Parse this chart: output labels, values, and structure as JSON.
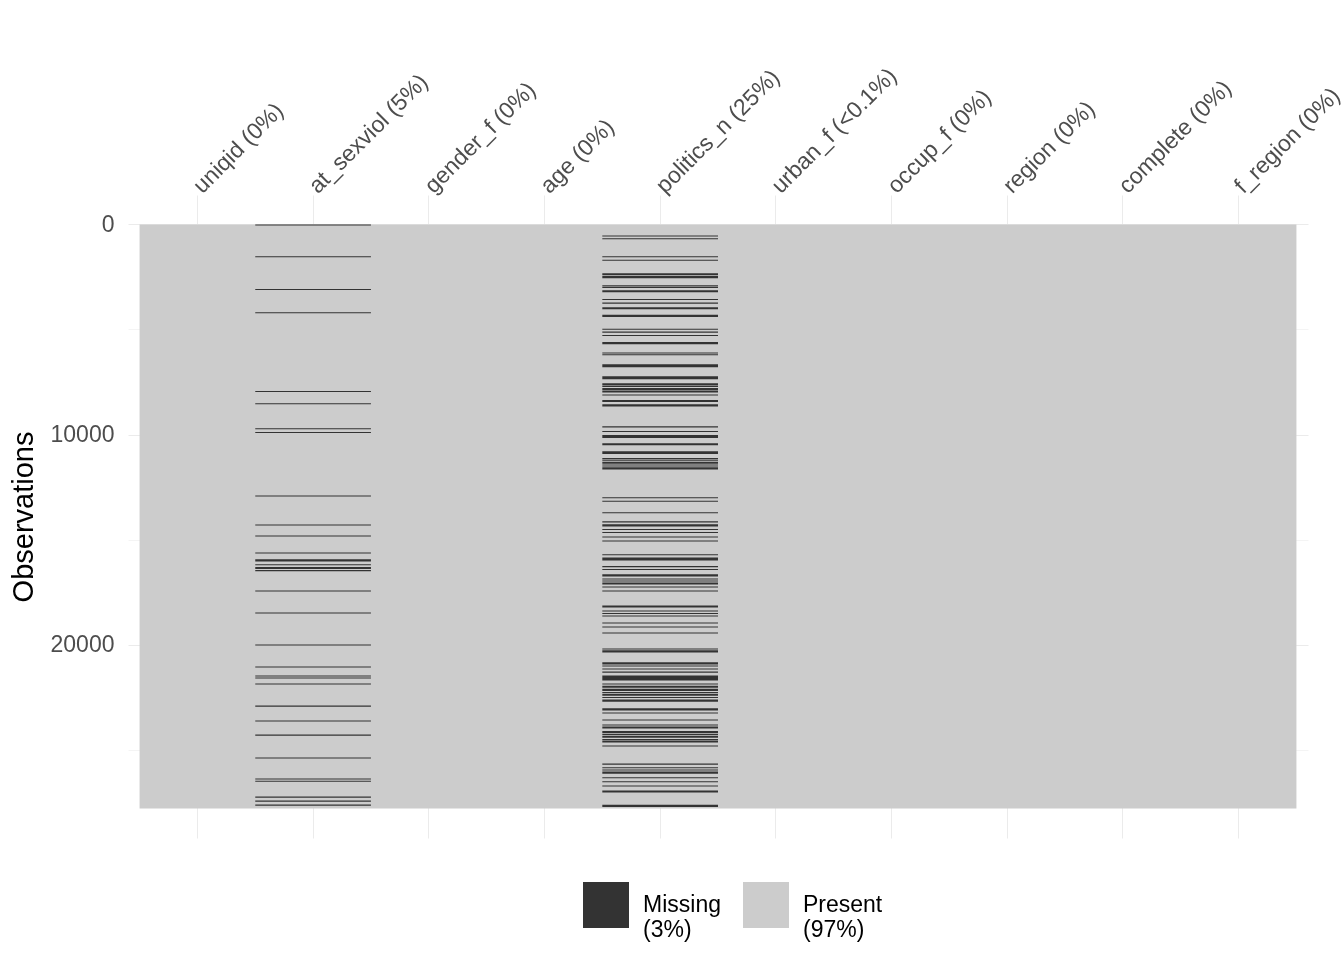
{
  "chart_data": {
    "type": "bar",
    "ylabel": "Observations",
    "categories": [
      "uniqid (0%)",
      "at_sexviol (5%)",
      "gender_f (0%)",
      "age (0%)",
      "politics_n (25%)",
      "urban_f (<0.1%)",
      "occup_f (0%)",
      "region (0%)",
      "complete (0%)",
      "f_region (0%)"
    ],
    "series": [
      {
        "name": "Missing (3%)",
        "color": "#333333",
        "x": [
          "at_sexviol (5%)",
          "at_sexviol (5%)",
          "at_sexviol (5%)",
          "at_sexviol (5%)",
          "at_sexviol (5%)",
          "at_sexviol (5%)",
          "at_sexviol (5%)",
          "at_sexviol (5%)",
          "at_sexviol (5%)",
          "at_sexviol (5%)",
          "at_sexviol (5%)",
          "at_sexviol (5%)",
          "at_sexviol (5%)",
          "at_sexviol (5%)",
          "at_sexviol (5%)",
          "at_sexviol (5%)",
          "at_sexviol (5%)",
          "at_sexviol (5%)",
          "at_sexviol (5%)",
          "at_sexviol (5%)",
          "at_sexviol (5%)",
          "at_sexviol (5%)",
          "at_sexviol (5%)",
          "at_sexviol (5%)",
          "at_sexviol (5%)",
          "at_sexviol (5%)",
          "at_sexviol (5%)",
          "at_sexviol (5%)",
          "at_sexviol (5%)",
          "at_sexviol (5%)",
          "at_sexviol (5%)",
          "at_sexviol (5%)",
          "politics_n (25%)",
          "politics_n (25%)",
          "politics_n (25%)",
          "politics_n (25%)",
          "politics_n (25%)",
          "politics_n (25%)",
          "politics_n (25%)",
          "politics_n (25%)",
          "politics_n (25%)",
          "politics_n (25%)",
          "politics_n (25%)",
          "politics_n (25%)",
          "politics_n (25%)",
          "politics_n (25%)",
          "politics_n (25%)",
          "politics_n (25%)",
          "politics_n (25%)",
          "politics_n (25%)",
          "politics_n (25%)",
          "politics_n (25%)",
          "politics_n (25%)",
          "politics_n (25%)",
          "politics_n (25%)",
          "politics_n (25%)",
          "politics_n (25%)",
          "politics_n (25%)",
          "politics_n (25%)",
          "politics_n (25%)",
          "politics_n (25%)",
          "politics_n (25%)",
          "politics_n (25%)",
          "politics_n (25%)",
          "politics_n (25%)",
          "politics_n (25%)",
          "politics_n (25%)",
          "politics_n (25%)",
          "politics_n (25%)",
          "politics_n (25%)",
          "politics_n (25%)",
          "politics_n (25%)",
          "politics_n (25%)",
          "politics_n (25%)",
          "politics_n (25%)",
          "politics_n (25%)",
          "politics_n (25%)",
          "politics_n (25%)",
          "politics_n (25%)",
          "politics_n (25%)",
          "politics_n (25%)",
          "politics_n (25%)",
          "politics_n (25%)",
          "politics_n (25%)",
          "politics_n (25%)",
          "politics_n (25%)",
          "politics_n (25%)",
          "politics_n (25%)",
          "politics_n (25%)",
          "politics_n (25%)",
          "politics_n (25%)",
          "politics_n (25%)",
          "politics_n (25%)",
          "politics_n (25%)",
          "politics_n (25%)",
          "politics_n (25%)",
          "politics_n (25%)",
          "politics_n (25%)",
          "politics_n (25%)",
          "politics_n (25%)",
          "politics_n (25%)",
          "politics_n (25%)",
          "politics_n (25%)",
          "politics_n (25%)",
          "politics_n (25%)",
          "politics_n (25%)",
          "politics_n (25%)",
          "politics_n (25%)",
          "politics_n (25%)",
          "politics_n (25%)",
          "politics_n (25%)",
          "politics_n (25%)",
          "politics_n (25%)",
          "politics_n (25%)",
          "politics_n (25%)",
          "politics_n (25%)",
          "politics_n (25%)",
          "politics_n (25%)",
          "politics_n (25%)",
          "politics_n (25%)",
          "politics_n (25%)",
          "politics_n (25%)",
          "politics_n (25%)",
          "politics_n (25%)",
          "politics_n (25%)",
          "politics_n (25%)",
          "politics_n (25%)",
          "politics_n (25%)",
          "politics_n (25%)",
          "politics_n (25%)",
          "politics_n (25%)"
        ],
        "base": [
          0,
          1510,
          3070,
          4180,
          7930,
          8510,
          9700,
          9880,
          12900,
          14280,
          14800,
          15610,
          15940,
          16170,
          16300,
          16450,
          17420,
          18470,
          19990,
          21040,
          21470,
          21560,
          21850,
          22900,
          23610,
          24280,
          25370,
          26370,
          26470,
          27230,
          27420,
          27610,
          530,
          660,
          1510,
          1680,
          2320,
          2460,
          2900,
          2980,
          3130,
          3550,
          3720,
          3940,
          4300,
          4960,
          5100,
          5260,
          5600,
          6090,
          6180,
          6660,
          7230,
          7560,
          7690,
          7780,
          7900,
          8090,
          8350,
          8560,
          9610,
          9830,
          10020,
          10410,
          10790,
          11120,
          11200,
          11300,
          11370,
          11470,
          11560,
          12980,
          13150,
          13700,
          14130,
          14270,
          14490,
          14640,
          14850,
          15040,
          15700,
          15850,
          16260,
          16400,
          16650,
          16850,
          16940,
          17040,
          17230,
          17420,
          18130,
          18370,
          18490,
          18610,
          18940,
          19130,
          19420,
          20180,
          20270,
          20840,
          20990,
          21130,
          21280,
          21470,
          21850,
          21950,
          22100,
          22250,
          22330,
          22490,
          22610,
          23030,
          23230,
          23560,
          23800,
          23890,
          24110,
          24250,
          24330,
          24490,
          24560,
          24800,
          25660,
          25830,
          25940,
          26040,
          26310,
          26500,
          26700,
          26940,
          27620
        ],
        "values": [
          50,
          50,
          50,
          50,
          50,
          50,
          50,
          50,
          50,
          50,
          50,
          50,
          100,
          50,
          100,
          50,
          50,
          50,
          50,
          50,
          50,
          50,
          50,
          50,
          50,
          50,
          50,
          50,
          50,
          50,
          50,
          50,
          50,
          50,
          50,
          50,
          100,
          100,
          50,
          50,
          100,
          50,
          50,
          100,
          100,
          50,
          50,
          50,
          100,
          50,
          50,
          140,
          140,
          100,
          50,
          100,
          100,
          50,
          100,
          100,
          50,
          50,
          140,
          100,
          140,
          50,
          50,
          50,
          50,
          50,
          100,
          50,
          50,
          50,
          50,
          100,
          50,
          50,
          50,
          50,
          50,
          140,
          50,
          50,
          100,
          50,
          50,
          100,
          50,
          50,
          100,
          50,
          50,
          50,
          50,
          50,
          50,
          50,
          100,
          100,
          50,
          50,
          50,
          240,
          50,
          100,
          100,
          50,
          100,
          50,
          100,
          100,
          50,
          50,
          50,
          100,
          100,
          50,
          100,
          50,
          100,
          50,
          50,
          50,
          50,
          100,
          50,
          50,
          50,
          100,
          100
        ]
      }
    ],
    "bands": [
      {
        "axis": "y",
        "from": 0,
        "to": 27800,
        "label": "Present (97%)",
        "color": "#cccccc"
      }
    ],
    "ylim": [
      29200,
      -1400
    ],
    "yticks": [
      0,
      {
        "value": 5000,
        "label": null
      },
      10000,
      {
        "value": 15000,
        "label": null
      },
      20000,
      {
        "value": 25000,
        "label": null
      }
    ],
    "grid": true,
    "legend": "bottom"
  }
}
